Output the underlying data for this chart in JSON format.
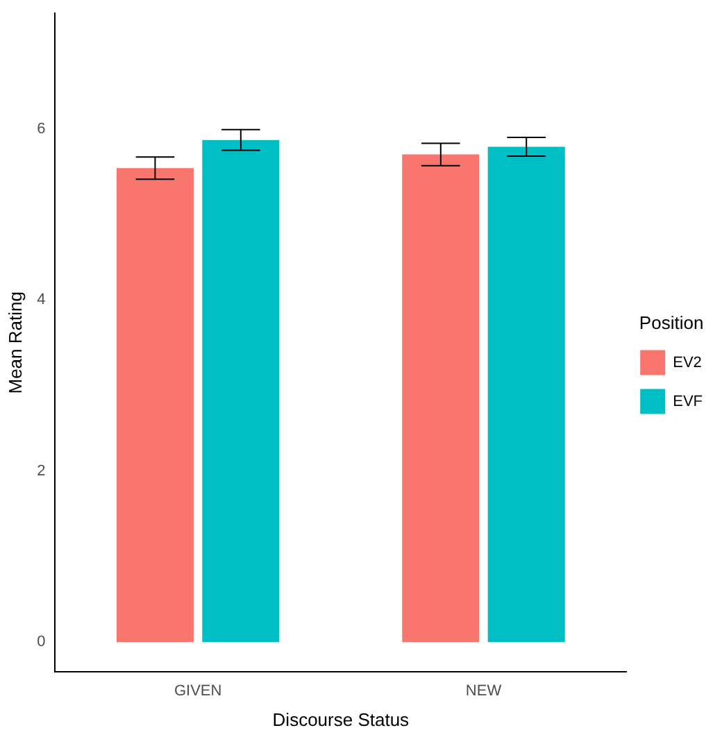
{
  "chart_data": {
    "type": "bar",
    "xlabel": "Discourse Status",
    "ylabel": "Mean Rating",
    "legend_title": "Position",
    "categories": [
      "GIVEN",
      "NEW"
    ],
    "series": [
      {
        "name": "EV2",
        "color": "#f8766d",
        "values": [
          5.54,
          5.7
        ],
        "errors": [
          0.13,
          0.13
        ]
      },
      {
        "name": "EVF",
        "color": "#00bfc4",
        "values": [
          5.87,
          5.79
        ],
        "errors": [
          0.12,
          0.11
        ]
      }
    ],
    "ylim": [
      -0.35,
      7.35
    ],
    "yticks": [
      0,
      2,
      4,
      6
    ],
    "grid": false,
    "legend": "right"
  }
}
